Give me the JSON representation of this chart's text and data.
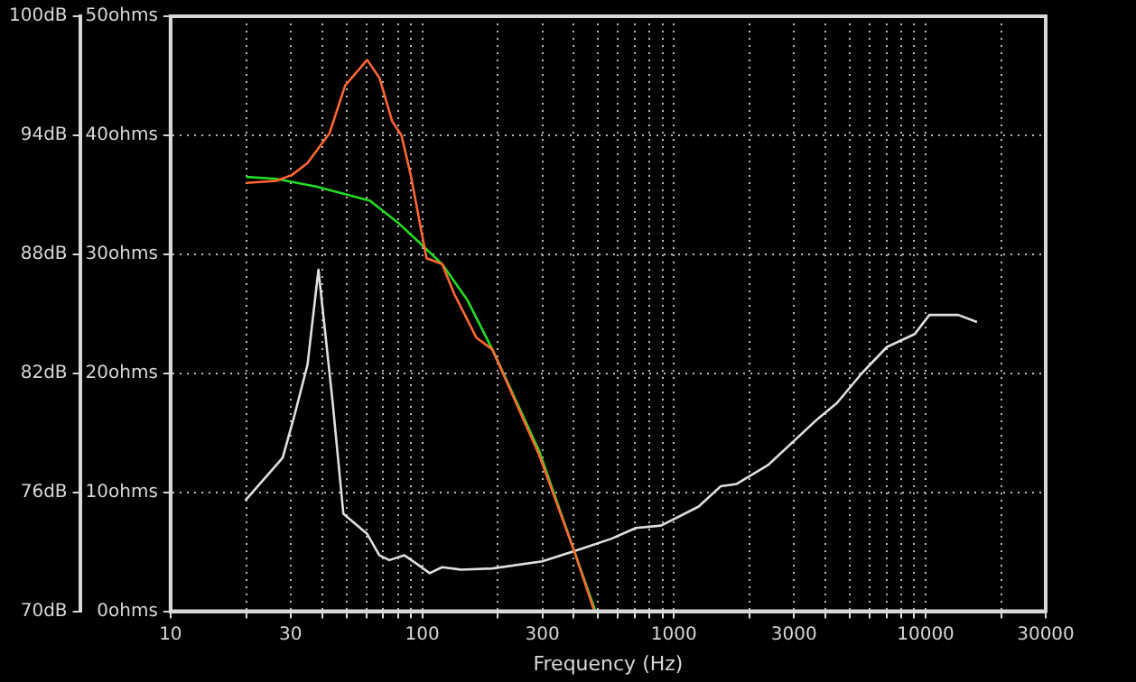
{
  "chart_data": {
    "type": "line",
    "xlabel": "Frequency (Hz)",
    "x": [
      20,
      26.3,
      30.4,
      35,
      42.8,
      49.4,
      60.4,
      67.6,
      76,
      82.7,
      90,
      104,
      120,
      134,
      164,
      190,
      291,
      400,
      480
    ],
    "series": [
      {
        "color": "#ff6633",
        "values": [
          91.6,
          91.7,
          92.0,
          92.6,
          94.1,
          96.5,
          97.8,
          96.9,
          94.7,
          94.0,
          92.0,
          87.8,
          87.5,
          86.0,
          83.8,
          83.2,
          77.9,
          73.1,
          70.1
        ]
      },
      {
        "color": "#22dd22",
        "x": [
          20,
          26.3,
          38.2,
          62,
          80,
          101,
          120,
          151,
          190,
          291,
          400,
          488
        ],
        "values": [
          91.9,
          91.8,
          91.4,
          90.7,
          89.6,
          88.4,
          87.5,
          85.7,
          83.2,
          78.1,
          73.1,
          70.0
        ]
      },
      {
        "color": "#e0e0e0",
        "axis": "y2",
        "x": [
          19.8,
          27.9,
          31.2,
          35,
          38.7,
          44,
          48.6,
          60.4,
          67.6,
          74,
          85,
          95,
          107,
          120,
          142,
          190,
          300,
          422,
          565,
          706,
          889,
          1254,
          1533,
          1776,
          2370,
          3740,
          4444,
          5580,
          7010,
          9060,
          10350,
          13500,
          16000
        ],
        "values": [
          9.3,
          12.9,
          16.6,
          20.7,
          28.7,
          17.7,
          8.2,
          6.5,
          4.7,
          4.3,
          4.7,
          4.0,
          3.2,
          3.7,
          3.5,
          3.6,
          4.2,
          5.2,
          6.1,
          7.0,
          7.2,
          8.8,
          10.5,
          10.7,
          12.3,
          16.2,
          17.5,
          20.0,
          22.2,
          23.3,
          24.9,
          24.9,
          24.3
        ]
      }
    ],
    "log": "x",
    "xlim": [
      10,
      30000
    ],
    "xticks": [
      10,
      {
        "value": 20,
        "label": null
      },
      30,
      {
        "value": 40,
        "label": null
      },
      {
        "value": 50,
        "label": null
      },
      {
        "value": 60,
        "label": null
      },
      {
        "value": 70,
        "label": null
      },
      {
        "value": 80,
        "label": null
      },
      {
        "value": 90,
        "label": null
      },
      100,
      {
        "value": 200,
        "label": null
      },
      300,
      {
        "value": 400,
        "label": null
      },
      {
        "value": 500,
        "label": null
      },
      {
        "value": 600,
        "label": null
      },
      {
        "value": 700,
        "label": null
      },
      {
        "value": 800,
        "label": null
      },
      {
        "value": 900,
        "label": null
      },
      1000,
      {
        "value": 2000,
        "label": null
      },
      3000,
      {
        "value": 4000,
        "label": null
      },
      {
        "value": 5000,
        "label": null
      },
      {
        "value": 6000,
        "label": null
      },
      {
        "value": 7000,
        "label": null
      },
      {
        "value": 8000,
        "label": null
      },
      {
        "value": 9000,
        "label": null
      },
      10000,
      {
        "value": 20000,
        "label": null
      },
      30000
    ],
    "ylim": [
      70,
      100
    ],
    "yticks": [
      {
        "value": 70,
        "label": "70dB"
      },
      {
        "value": 76,
        "label": "76dB"
      },
      {
        "value": 82,
        "label": "82dB"
      },
      {
        "value": 88,
        "label": "88dB"
      },
      {
        "value": 94,
        "label": "94dB"
      },
      {
        "value": 100,
        "label": "100dB"
      }
    ],
    "y2lim": [
      0,
      50
    ],
    "y2ticks": [
      {
        "value": 0,
        "label": "0ohms"
      },
      {
        "value": 10,
        "label": "10ohms"
      },
      {
        "value": 20,
        "label": "20ohms"
      },
      {
        "value": 30,
        "label": "30ohms"
      },
      {
        "value": 40,
        "label": "40ohms"
      },
      {
        "value": 50,
        "label": "50ohms"
      }
    ],
    "grid": true,
    "legend": false,
    "marker": "none",
    "line_style": "solid"
  }
}
